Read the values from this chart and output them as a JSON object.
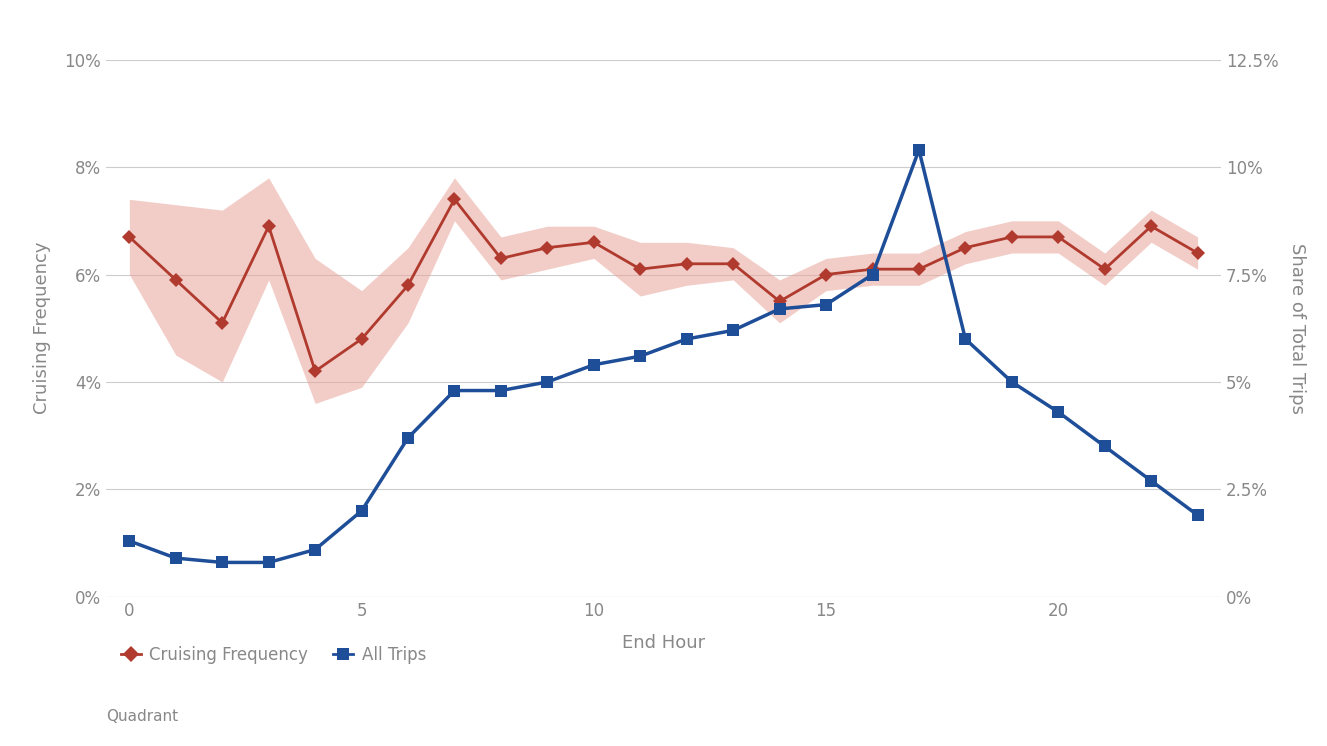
{
  "hours": [
    0,
    1,
    2,
    3,
    4,
    5,
    6,
    7,
    8,
    9,
    10,
    11,
    12,
    13,
    14,
    15,
    16,
    17,
    18,
    19,
    20,
    21,
    22,
    23
  ],
  "cruising_freq": [
    0.067,
    0.059,
    0.051,
    0.069,
    0.042,
    0.048,
    0.058,
    0.074,
    0.063,
    0.065,
    0.066,
    0.061,
    0.062,
    0.062,
    0.055,
    0.06,
    0.061,
    0.061,
    0.065,
    0.067,
    0.067,
    0.061,
    0.069,
    0.064
  ],
  "cruising_upper": [
    0.074,
    0.073,
    0.072,
    0.078,
    0.063,
    0.057,
    0.065,
    0.078,
    0.067,
    0.069,
    0.069,
    0.066,
    0.066,
    0.065,
    0.059,
    0.063,
    0.064,
    0.064,
    0.068,
    0.07,
    0.07,
    0.064,
    0.072,
    0.067
  ],
  "cruising_lower": [
    0.06,
    0.045,
    0.04,
    0.059,
    0.036,
    0.039,
    0.051,
    0.07,
    0.059,
    0.061,
    0.063,
    0.056,
    0.058,
    0.059,
    0.051,
    0.057,
    0.058,
    0.058,
    0.062,
    0.064,
    0.064,
    0.058,
    0.066,
    0.061
  ],
  "all_trips": [
    0.013,
    0.009,
    0.008,
    0.008,
    0.011,
    0.02,
    0.037,
    0.048,
    0.048,
    0.05,
    0.054,
    0.056,
    0.06,
    0.062,
    0.067,
    0.068,
    0.075,
    0.104,
    0.06,
    0.05,
    0.043,
    0.035,
    0.027,
    0.019
  ],
  "cruising_color": "#B03A2E",
  "cruising_fill_color": "#E8A59A",
  "all_trips_color": "#1F4E99",
  "left_ylim": [
    0,
    0.1
  ],
  "right_ylim": [
    0,
    0.125
  ],
  "left_yticks": [
    0,
    0.02,
    0.04,
    0.06,
    0.08,
    0.1
  ],
  "right_yticks": [
    0,
    0.025,
    0.05,
    0.075,
    0.1,
    0.125
  ],
  "left_yticklabels": [
    "0%",
    "2%",
    "4%",
    "6%",
    "8%",
    "10%"
  ],
  "right_yticklabels": [
    "0%",
    "2.5%",
    "5%",
    "7.5%",
    "10%",
    "12.5%"
  ],
  "xlabel": "End Hour",
  "ylabel_left": "Cruising Frequency",
  "ylabel_right": "Share of Total Trips",
  "xticks": [
    0,
    5,
    10,
    15,
    20
  ],
  "legend_label_1": "Cruising Frequency",
  "legend_label_2": "All Trips",
  "footnote": "Quadrant",
  "background_color": "#FFFFFF",
  "grid_color": "#CCCCCC",
  "tick_color": "#888888",
  "label_color": "#888888",
  "title_color": "#555555"
}
